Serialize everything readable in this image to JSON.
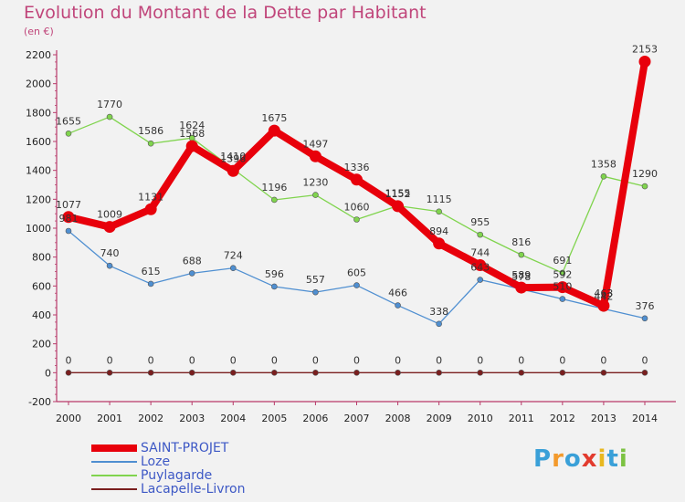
{
  "title": "Evolution du Montant de la Dette par Habitant",
  "subtitle": "(en €)",
  "logo": {
    "text": "Proxiti",
    "colors": [
      "#3aa0d8",
      "#f39a2c",
      "#3aa0d8",
      "#e23b2e",
      "#e8b820",
      "#3aa0d8",
      "#7cc242"
    ]
  },
  "colors": {
    "background": "#f2f2f2",
    "axis": "#b83a6a",
    "title": "#c0457a",
    "legend_text": "#3d58c5"
  },
  "chart_data": {
    "type": "line",
    "title": "Evolution du Montant de la Dette par Habitant",
    "subtitle": "(en €)",
    "xlabel": "",
    "ylabel": "",
    "x": [
      "2000",
      "2001",
      "2002",
      "2003",
      "2004",
      "2005",
      "2006",
      "2007",
      "2008",
      "2009",
      "2010",
      "2011",
      "2012",
      "2013",
      "2014"
    ],
    "ylim": [
      -200,
      2200
    ],
    "yticks": [
      -200,
      0,
      200,
      400,
      600,
      800,
      1000,
      1200,
      1400,
      1600,
      1800,
      2000,
      2200
    ],
    "grid": false,
    "legend_position": "bottom-left",
    "series": [
      {
        "name": "SAINT-PROJET",
        "color": "#e8000b",
        "values": [
          1077,
          1009,
          1131,
          1568,
          1396,
          1675,
          1497,
          1336,
          1152,
          894,
          744,
          589,
          592,
          463,
          2153
        ]
      },
      {
        "name": "Loze",
        "color": "#4f8fd1",
        "values": [
          981,
          740,
          615,
          688,
          724,
          596,
          557,
          605,
          466,
          338,
          643,
          578,
          510,
          442,
          376
        ]
      },
      {
        "name": "Puylagarde",
        "color": "#80d44e",
        "values": [
          1655,
          1770,
          1586,
          1624,
          1410,
          1196,
          1230,
          1060,
          1155,
          1115,
          955,
          816,
          691,
          1358,
          1290
        ]
      },
      {
        "name": "Lacapelle-Livron",
        "color": "#7a1f1f",
        "values": [
          0,
          0,
          0,
          0,
          0,
          0,
          0,
          0,
          0,
          0,
          0,
          0,
          0,
          0,
          0
        ]
      }
    ]
  }
}
